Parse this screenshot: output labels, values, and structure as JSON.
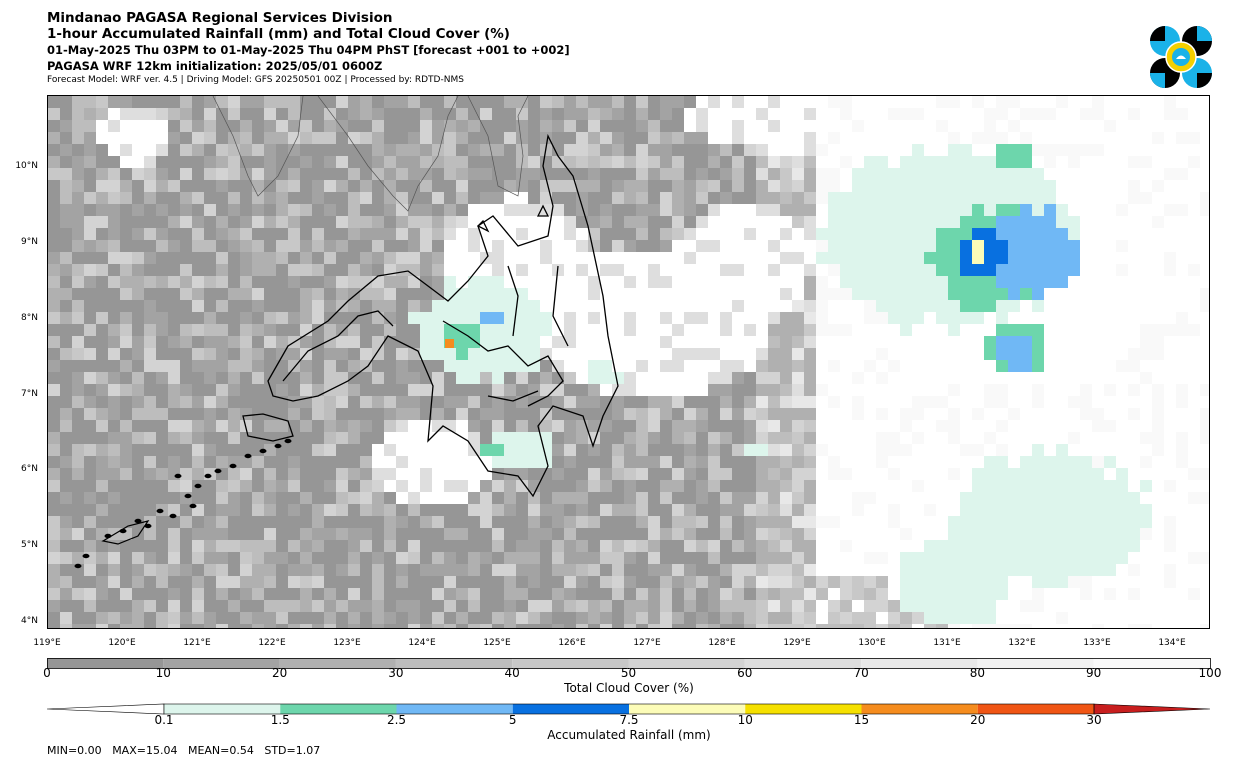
{
  "header": {
    "org": "Mindanao PAGASA Regional Services Division",
    "title": "1-hour Accumulated Rainfall (mm) and Total Cloud Cover (%)",
    "valid": "01-May-2025 Thu 03PM to 01-May-2025 Thu 04PM PhST [forecast +001 to +002]",
    "init": "PAGASA WRF 12km initialization: 2025/05/01 0600Z",
    "meta": "Forecast Model: WRF ver. 4.5 | Driving Model: GFS 20250501 00Z | Processed by: RDTD-NMS"
  },
  "logo": {
    "icon": "pagasa-logo-icon",
    "colors": [
      "#1ab2e8",
      "#000000",
      "#f5d000"
    ]
  },
  "map": {
    "lat_labels": [
      {
        "label": "10°N",
        "value": 10
      },
      {
        "label": "9°N",
        "value": 9
      },
      {
        "label": "8°N",
        "value": 8
      },
      {
        "label": "7°N",
        "value": 7
      },
      {
        "label": "6°N",
        "value": 6
      },
      {
        "label": "5°N",
        "value": 5
      },
      {
        "label": "4°N",
        "value": 4
      }
    ],
    "lon_labels": [
      {
        "label": "119°E",
        "value": 119
      },
      {
        "label": "120°E",
        "value": 120
      },
      {
        "label": "121°E",
        "value": 121
      },
      {
        "label": "122°E",
        "value": 122
      },
      {
        "label": "123°E",
        "value": 123
      },
      {
        "label": "124°E",
        "value": 124
      },
      {
        "label": "125°E",
        "value": 125
      },
      {
        "label": "126°E",
        "value": 126
      },
      {
        "label": "127°E",
        "value": 127
      },
      {
        "label": "128°E",
        "value": 128
      },
      {
        "label": "129°E",
        "value": 129
      },
      {
        "label": "130°E",
        "value": 130
      },
      {
        "label": "131°E",
        "value": 131
      },
      {
        "label": "132°E",
        "value": 132
      },
      {
        "label": "133°E",
        "value": 133
      },
      {
        "label": "134°E",
        "value": 134
      }
    ],
    "extent": {
      "lon": [
        119,
        134.5
      ],
      "lat": [
        3.9,
        10.95
      ]
    }
  },
  "cloud_colorbar": {
    "title": "Total Cloud Cover (%)",
    "ticks": [
      "0",
      "10",
      "20",
      "30",
      "40",
      "50",
      "60",
      "70",
      "80",
      "90",
      "100"
    ],
    "colors": [
      "#969696",
      "#a3a3a3",
      "#b0b0b0",
      "#bdbdbd",
      "#c8c8c8",
      "#d3d3d3",
      "#dedede",
      "#e8e8e8",
      "#f2f2f2",
      "#f9f9f9"
    ]
  },
  "rain_colorbar": {
    "title": "Accumulated Rainfall (mm)",
    "ticks": [
      "0.1",
      "1.5",
      "2.5",
      "5",
      "7.5",
      "10",
      "15",
      "20",
      "30"
    ],
    "colors": [
      "#ddf5ec",
      "#6dd6ac",
      "#70b8f5",
      "#0870e0",
      "#fcfcb8",
      "#f5e000",
      "#f58c1e",
      "#f05514",
      "#c81e1e"
    ]
  },
  "stats": {
    "min": "MIN=0.00",
    "max": "MAX=15.04",
    "mean": "MEAN=0.54",
    "std": "STD=1.07"
  }
}
